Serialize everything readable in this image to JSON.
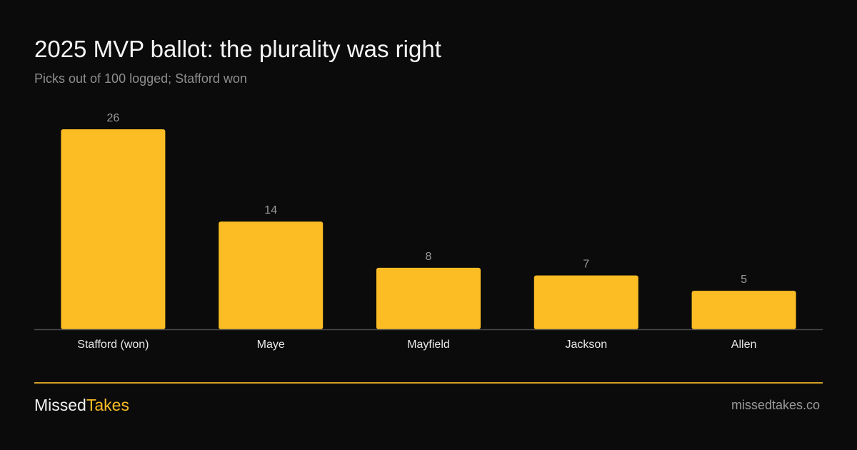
{
  "header": {
    "title": "2025 MVP ballot: the plurality was right",
    "subtitle": "Picks out of 100 logged; Stafford won"
  },
  "chart_data": {
    "type": "bar",
    "categories": [
      "Stafford (won)",
      "Maye",
      "Mayfield",
      "Jackson",
      "Allen"
    ],
    "values": [
      26,
      14,
      8,
      7,
      5
    ],
    "title": "2025 MVP ballot: the plurality was right",
    "subtitle": "Picks out of 100 logged; Stafford won",
    "xlabel": "",
    "ylabel": "",
    "ylim": [
      0,
      26
    ],
    "grid": false,
    "legend": "none",
    "bar_color": "#fbbd23",
    "axis_color": "#4a4a4a"
  },
  "footer": {
    "brand_part1": "Missed",
    "brand_part2": "Takes",
    "brand_color": "#fbbd23",
    "site": "missedtakes.co"
  }
}
